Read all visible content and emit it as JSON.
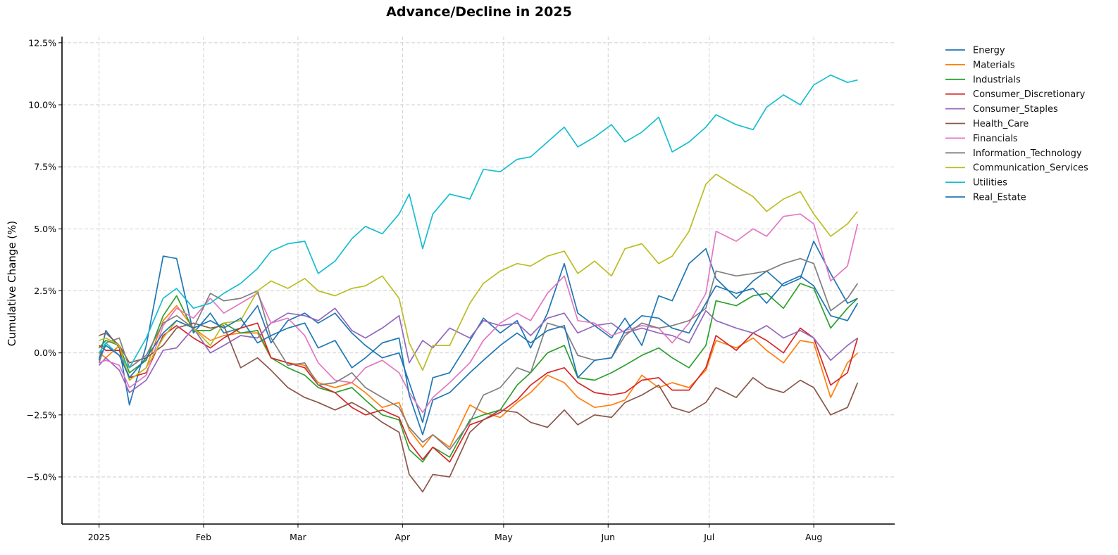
{
  "chart_data": {
    "type": "line",
    "title": "Advance/Decline in 2025",
    "xlabel": "",
    "ylabel": "Cumulative Change (%)",
    "x_type": "date",
    "xlim": [
      "2024-12-21",
      "2025-08-25"
    ],
    "ylim": [
      -6.9,
      12.75
    ],
    "yticks": [
      -5.0,
      -2.5,
      0.0,
      2.5,
      5.0,
      7.5,
      10.0,
      12.5
    ],
    "ytick_labels": [
      "−5.0%",
      "−2.5%",
      "0.0%",
      "2.5%",
      "5.0%",
      "7.5%",
      "10.0%",
      "12.5%"
    ],
    "xticks": [
      "2025-01-01",
      "2025-02-01",
      "2025-03-01",
      "2025-04-01",
      "2025-05-01",
      "2025-06-01",
      "2025-07-01",
      "2025-08-01"
    ],
    "xtick_labels": [
      "2025",
      "Feb",
      "Mar",
      "Apr",
      "May",
      "Jun",
      "Jul",
      "Aug"
    ],
    "grid": true,
    "legend_position": "outside-top-right",
    "x": [
      "2025-01-01",
      "2025-01-03",
      "2025-01-07",
      "2025-01-10",
      "2025-01-15",
      "2025-01-20",
      "2025-01-24",
      "2025-01-29",
      "2025-02-03",
      "2025-02-07",
      "2025-02-12",
      "2025-02-17",
      "2025-02-21",
      "2025-02-26",
      "2025-03-03",
      "2025-03-07",
      "2025-03-12",
      "2025-03-17",
      "2025-03-21",
      "2025-03-26",
      "2025-03-31",
      "2025-04-03",
      "2025-04-07",
      "2025-04-10",
      "2025-04-15",
      "2025-04-21",
      "2025-04-25",
      "2025-04-30",
      "2025-05-05",
      "2025-05-09",
      "2025-05-14",
      "2025-05-19",
      "2025-05-23",
      "2025-05-28",
      "2025-06-02",
      "2025-06-06",
      "2025-06-11",
      "2025-06-16",
      "2025-06-20",
      "2025-06-25",
      "2025-06-30",
      "2025-07-03",
      "2025-07-09",
      "2025-07-14",
      "2025-07-18",
      "2025-07-23",
      "2025-07-28",
      "2025-08-01",
      "2025-08-06",
      "2025-08-11",
      "2025-08-14"
    ],
    "series": [
      {
        "name": "Energy",
        "color": "#1f77b4",
        "values": [
          -0.3,
          0.9,
          0.2,
          -2.1,
          0.3,
          3.9,
          3.8,
          0.8,
          1.6,
          0.8,
          1.0,
          1.9,
          0.4,
          1.3,
          1.6,
          1.2,
          1.6,
          0.8,
          0.3,
          -0.2,
          0.0,
          -1.2,
          -2.8,
          -1.0,
          -0.8,
          0.5,
          1.4,
          0.8,
          1.3,
          0.2,
          1.6,
          3.6,
          1.6,
          1.1,
          0.6,
          1.4,
          0.3,
          2.3,
          2.1,
          3.6,
          4.2,
          3.0,
          2.2,
          2.9,
          3.3,
          2.7,
          3.0,
          4.5,
          3.2,
          2.0,
          2.2
        ]
      },
      {
        "name": "Materials",
        "color": "#ff7f0e",
        "values": [
          0.0,
          -0.2,
          0.3,
          -1.1,
          -0.6,
          1.3,
          1.9,
          1.0,
          0.5,
          0.7,
          0.8,
          0.8,
          -0.2,
          -0.4,
          -0.5,
          -1.2,
          -1.4,
          -1.2,
          -1.6,
          -2.2,
          -2.0,
          -3.1,
          -3.8,
          -3.3,
          -3.8,
          -2.1,
          -2.4,
          -2.6,
          -2.0,
          -1.6,
          -0.9,
          -1.2,
          -1.8,
          -2.2,
          -2.1,
          -1.9,
          -0.9,
          -1.4,
          -1.2,
          -1.4,
          -0.7,
          0.5,
          0.2,
          0.6,
          0.1,
          -0.4,
          0.5,
          0.4,
          -1.8,
          -0.4,
          0.0
        ]
      },
      {
        "name": "Industrials",
        "color": "#2ca02c",
        "values": [
          0.2,
          0.5,
          0.3,
          -0.8,
          -0.3,
          1.5,
          2.3,
          0.9,
          0.9,
          1.2,
          0.8,
          0.9,
          -0.2,
          -0.6,
          -0.9,
          -1.4,
          -1.6,
          -1.4,
          -1.9,
          -2.5,
          -2.7,
          -3.9,
          -4.4,
          -3.8,
          -4.2,
          -2.7,
          -2.5,
          -2.3,
          -1.3,
          -0.8,
          0.0,
          0.3,
          -1.0,
          -1.1,
          -0.8,
          -0.5,
          -0.1,
          0.2,
          -0.2,
          -0.6,
          0.3,
          2.1,
          1.9,
          2.3,
          2.4,
          1.8,
          2.8,
          2.6,
          1.0,
          1.8,
          2.2
        ]
      },
      {
        "name": "Consumer_Discretionary",
        "color": "#d62728",
        "values": [
          0.3,
          0.1,
          0.1,
          -1.0,
          -0.8,
          0.7,
          1.1,
          0.6,
          0.2,
          0.6,
          1.0,
          1.2,
          -0.2,
          -0.4,
          -0.6,
          -1.3,
          -1.6,
          -2.2,
          -2.5,
          -2.3,
          -2.6,
          -3.6,
          -4.3,
          -3.8,
          -4.4,
          -2.9,
          -2.7,
          -2.4,
          -1.9,
          -1.3,
          -0.8,
          -0.6,
          -1.2,
          -1.6,
          -1.7,
          -1.6,
          -1.1,
          -1.0,
          -1.5,
          -1.5,
          -0.6,
          0.7,
          0.1,
          0.8,
          0.5,
          0.0,
          1.0,
          0.6,
          -1.3,
          -0.8,
          0.6
        ]
      },
      {
        "name": "Consumer_Staples",
        "color": "#9467bd",
        "values": [
          -0.5,
          -0.2,
          -0.7,
          -1.6,
          -1.1,
          0.1,
          0.2,
          1.0,
          0.0,
          0.3,
          0.7,
          0.6,
          1.2,
          1.6,
          1.5,
          1.3,
          1.8,
          0.9,
          0.6,
          1.0,
          1.5,
          -0.4,
          0.5,
          0.2,
          1.0,
          0.6,
          1.3,
          1.1,
          1.2,
          0.7,
          1.4,
          1.6,
          0.8,
          1.1,
          1.2,
          0.8,
          1.0,
          0.8,
          0.7,
          0.4,
          1.7,
          1.3,
          1.0,
          0.8,
          1.1,
          0.6,
          0.9,
          0.6,
          -0.3,
          0.3,
          0.6
        ]
      },
      {
        "name": "Health_Care",
        "color": "#8c564b",
        "values": [
          0.7,
          0.8,
          0.3,
          -0.4,
          -0.2,
          0.3,
          1.0,
          1.2,
          1.0,
          1.1,
          -0.6,
          -0.2,
          -0.7,
          -1.4,
          -1.8,
          -2.0,
          -2.3,
          -2.0,
          -2.3,
          -2.8,
          -3.2,
          -4.9,
          -5.6,
          -4.9,
          -5.0,
          -3.2,
          -2.7,
          -2.3,
          -2.4,
          -2.8,
          -3.0,
          -2.3,
          -2.9,
          -2.5,
          -2.6,
          -2.0,
          -1.7,
          -1.3,
          -2.2,
          -2.4,
          -2.0,
          -1.4,
          -1.8,
          -1.0,
          -1.4,
          -1.6,
          -1.1,
          -1.4,
          -2.5,
          -2.2,
          -1.2
        ]
      },
      {
        "name": "Financials",
        "color": "#e377c2",
        "values": [
          -0.4,
          -0.3,
          -0.5,
          -1.4,
          -0.9,
          1.1,
          1.8,
          1.4,
          2.2,
          1.6,
          2.0,
          2.4,
          1.2,
          1.4,
          0.7,
          -0.4,
          -1.1,
          -1.2,
          -0.6,
          -0.3,
          -0.8,
          -1.6,
          -2.4,
          -1.8,
          -1.2,
          -0.4,
          0.5,
          1.2,
          1.6,
          1.3,
          2.4,
          3.1,
          1.3,
          1.2,
          0.7,
          0.9,
          1.1,
          1.0,
          0.4,
          1.2,
          2.4,
          4.9,
          4.5,
          5.0,
          4.7,
          5.5,
          5.6,
          5.2,
          2.9,
          3.5,
          5.2
        ]
      },
      {
        "name": "Information_Technology",
        "color": "#7f7f7f",
        "values": [
          -0.4,
          0.4,
          0.6,
          -0.6,
          -0.1,
          1.2,
          1.5,
          1.0,
          2.4,
          2.1,
          2.2,
          2.5,
          0.6,
          -0.5,
          -0.4,
          -1.3,
          -1.2,
          -0.8,
          -1.4,
          -1.8,
          -2.2,
          -3.0,
          -3.6,
          -3.3,
          -3.9,
          -2.8,
          -1.7,
          -1.4,
          -0.6,
          -0.8,
          1.2,
          1.0,
          -0.1,
          -0.3,
          -0.2,
          0.7,
          1.2,
          1.0,
          1.1,
          1.3,
          1.8,
          3.3,
          3.1,
          3.2,
          3.3,
          3.6,
          3.8,
          3.6,
          1.7,
          2.2,
          2.8
        ]
      },
      {
        "name": "Communication_Services",
        "color": "#bcbd22",
        "values": [
          0.5,
          0.6,
          0.3,
          -1.1,
          -0.6,
          0.6,
          1.3,
          1.0,
          0.3,
          1.2,
          1.3,
          2.5,
          2.9,
          2.6,
          3.0,
          2.5,
          2.3,
          2.6,
          2.7,
          3.1,
          2.2,
          0.4,
          -0.7,
          0.3,
          0.3,
          2.0,
          2.8,
          3.3,
          3.6,
          3.5,
          3.9,
          4.1,
          3.2,
          3.7,
          3.1,
          4.2,
          4.4,
          3.6,
          3.9,
          4.9,
          6.8,
          7.2,
          6.7,
          6.3,
          5.7,
          6.2,
          6.5,
          5.6,
          4.7,
          5.2,
          5.7
        ]
      },
      {
        "name": "Utilities",
        "color": "#17becf",
        "values": [
          0.0,
          0.4,
          -0.1,
          -0.6,
          0.6,
          2.2,
          2.6,
          1.8,
          2.0,
          2.4,
          2.8,
          3.4,
          4.1,
          4.4,
          4.5,
          3.2,
          3.7,
          4.6,
          5.1,
          4.8,
          5.6,
          6.4,
          4.2,
          5.6,
          6.4,
          6.2,
          7.4,
          7.3,
          7.8,
          7.9,
          8.5,
          9.1,
          8.3,
          8.7,
          9.2,
          8.5,
          8.9,
          9.5,
          8.1,
          8.5,
          9.1,
          9.6,
          9.2,
          9.0,
          9.9,
          10.4,
          10.0,
          10.8,
          11.2,
          10.9,
          11.0
        ]
      },
      {
        "name": "Real_Estate",
        "color": "#1f77b4",
        "values": [
          -0.2,
          0.3,
          -0.1,
          -1.0,
          -0.2,
          0.8,
          1.3,
          1.0,
          1.3,
          1.0,
          1.4,
          0.4,
          0.7,
          1.0,
          1.2,
          0.2,
          0.5,
          -0.6,
          -0.2,
          0.4,
          0.6,
          -1.7,
          -3.3,
          -1.9,
          -1.6,
          -0.8,
          -0.3,
          0.3,
          0.8,
          0.4,
          0.9,
          1.1,
          -1.0,
          -0.3,
          -0.2,
          0.9,
          1.5,
          1.4,
          1.0,
          0.8,
          2.0,
          2.7,
          2.4,
          2.6,
          2.0,
          2.8,
          3.1,
          2.7,
          1.5,
          1.3,
          2.0
        ]
      }
    ]
  }
}
